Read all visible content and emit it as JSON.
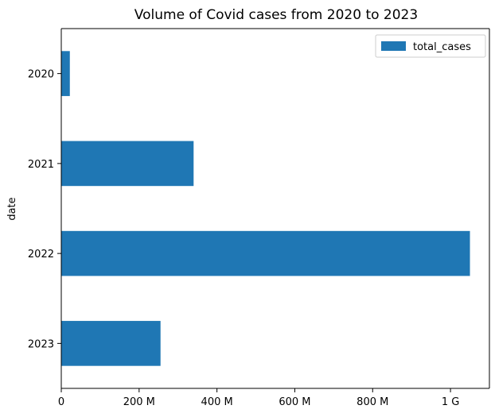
{
  "chart_data": {
    "type": "bar",
    "orientation": "horizontal",
    "title": "Volume of Covid cases from 2020 to 2023",
    "ylabel": "date",
    "xlabel": "",
    "categories": [
      "2020",
      "2021",
      "2022",
      "2023"
    ],
    "series": [
      {
        "name": "total_cases",
        "values": [
          22000000,
          340000000,
          1050000000,
          255000000
        ],
        "color": "#1f77b4"
      }
    ],
    "xlim": [
      0,
      1100000000
    ],
    "x_ticks": [
      {
        "value": 0,
        "label": "0"
      },
      {
        "value": 200000000,
        "label": "200 M"
      },
      {
        "value": 400000000,
        "label": "400 M"
      },
      {
        "value": 600000000,
        "label": "600 M"
      },
      {
        "value": 800000000,
        "label": "800 M"
      },
      {
        "value": 1000000000,
        "label": "1 G"
      }
    ],
    "legend": {
      "position": "top-right"
    },
    "grid": false
  }
}
